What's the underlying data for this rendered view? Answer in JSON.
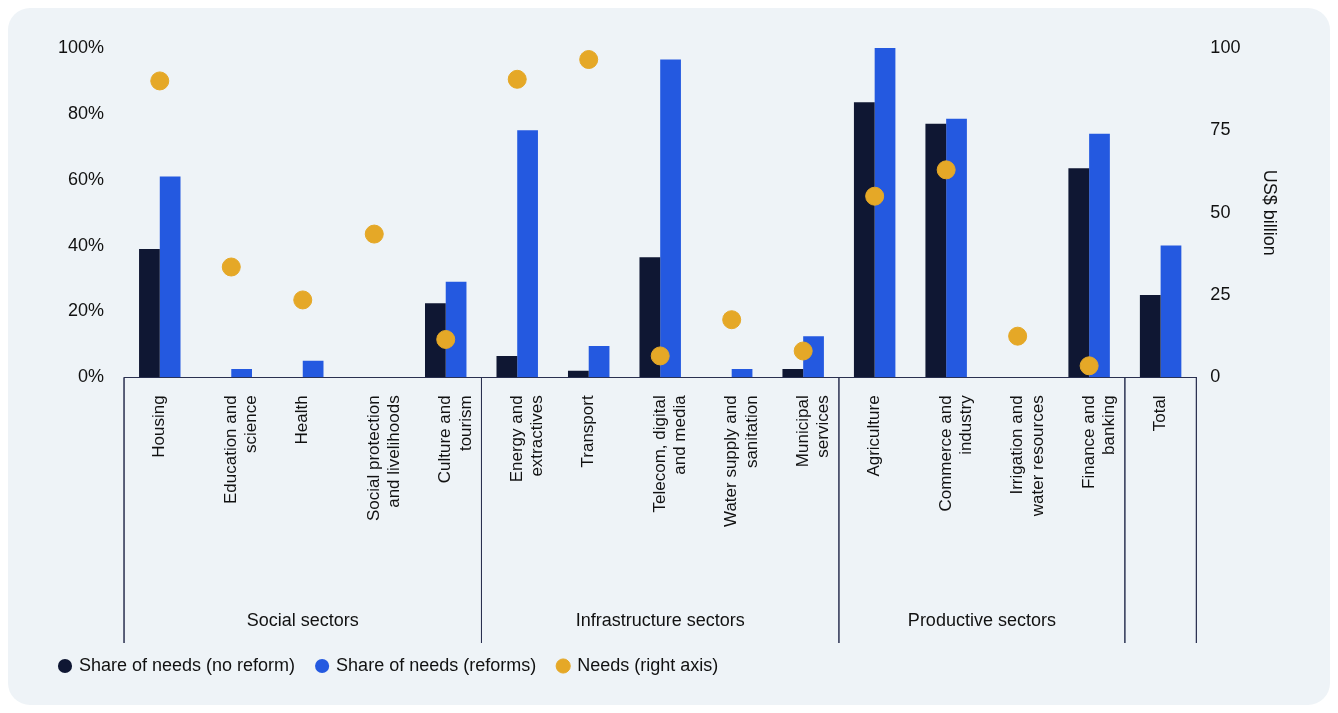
{
  "chart_data": {
    "type": "bar",
    "categories": [
      "Housing",
      "Education and science",
      "Health",
      "Social protection and livelihoods",
      "Culture and tourism",
      "Energy and extractives",
      "Transport",
      "Telecom, digital and media",
      "Water supply and sanitation",
      "Municipal services",
      "Agriculture",
      "Commerce and industry",
      "Irrigation and water resources",
      "Finance and banking",
      "Total"
    ],
    "series": [
      {
        "name": "Share of needs (no reform)",
        "color": "#0f1733",
        "values": [
          39,
          0,
          0,
          0,
          22.5,
          6.5,
          2,
          36.5,
          0,
          2.5,
          83.5,
          77,
          0,
          63.5,
          25
        ]
      },
      {
        "name": "Share of needs (reforms)",
        "color": "#2459e0",
        "values": [
          61,
          2.5,
          5,
          0,
          29,
          75,
          9.5,
          96.5,
          2.5,
          12.5,
          100,
          78.5,
          0,
          74,
          40
        ]
      },
      {
        "name": "Needs (right axis)",
        "color": "#e5a827",
        "type": "scatter",
        "axis": "y2",
        "marker": "circle",
        "values": [
          90,
          33.5,
          23.5,
          43.5,
          11.5,
          90.5,
          96.5,
          6.5,
          17.5,
          8,
          55,
          63,
          12.5,
          3.5,
          null
        ]
      }
    ],
    "ylim": [
      0,
      100
    ],
    "yticks": [
      {
        "value": 0,
        "label": "0%"
      },
      {
        "value": 20,
        "label": "20%"
      },
      {
        "value": 40,
        "label": "40%"
      },
      {
        "value": 60,
        "label": "60%"
      },
      {
        "value": 80,
        "label": "80%"
      },
      {
        "value": 100,
        "label": "100%"
      }
    ],
    "y2lim": [
      0,
      100
    ],
    "y2ticks": [
      0,
      25,
      50,
      75,
      100
    ],
    "y2label": "US$ billion",
    "annotations": [
      "Social sectors",
      "Infrastructure sectors",
      "Productive sectors"
    ],
    "grid": false,
    "legend": "bottom left"
  }
}
